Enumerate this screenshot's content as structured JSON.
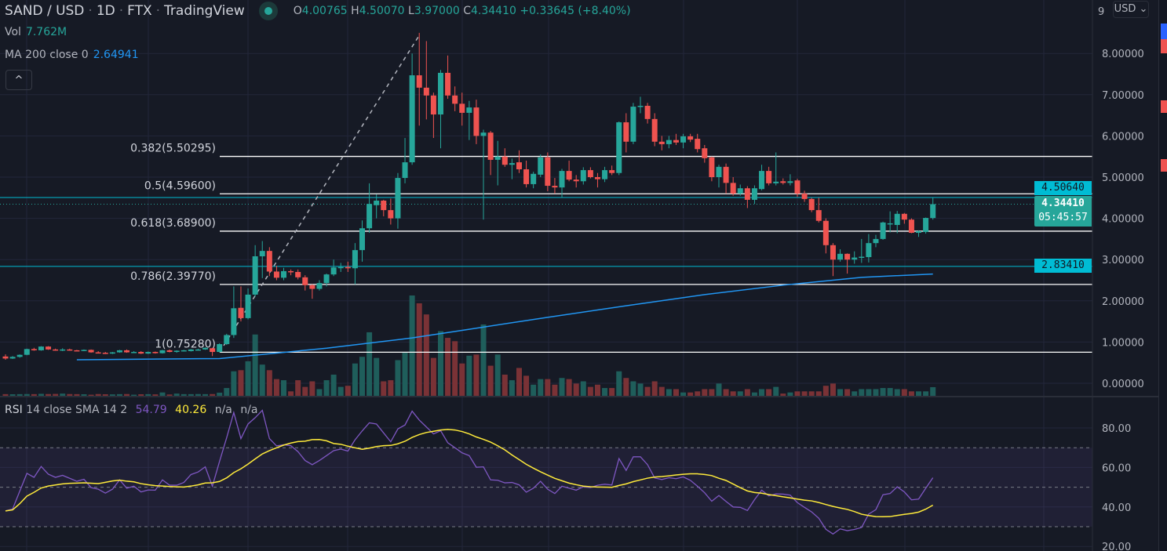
{
  "header": {
    "symbol": "SAND / USD",
    "interval": "1D",
    "exchange": "FTX",
    "source": "TradingView",
    "ohlc": {
      "o_label": "O",
      "o": "4.00765",
      "h_label": "H",
      "h": "4.50070",
      "l_label": "L",
      "l": "3.97000",
      "c_label": "C",
      "c": "4.34410",
      "change": "+0.33645 (+8.40%)"
    }
  },
  "legend": {
    "vol_label": "Vol",
    "vol_value": "7.762M",
    "ma_label": "MA 200 close 0",
    "ma_value": "2.64941",
    "collapse_icon": "chevron-up-icon",
    "collapse_glyph": "^"
  },
  "rsi_legend": {
    "name": "RSI",
    "params": "14 close SMA 14 2",
    "rsi_value": "54.79",
    "sma_value": "40.26",
    "na1": "n/a",
    "na2": "n/a"
  },
  "price_axis": {
    "currency": "USD",
    "currency_caret": "⌄",
    "top_partial": "9",
    "ticks": [
      {
        "value": 8,
        "label": "8.00000"
      },
      {
        "value": 7,
        "label": "7.00000"
      },
      {
        "value": 6,
        "label": "6.00000"
      },
      {
        "value": 5,
        "label": "5.00000"
      },
      {
        "value": 4,
        "label": "4.00000"
      },
      {
        "value": 3,
        "label": "3.00000"
      },
      {
        "value": 2,
        "label": "2.00000"
      },
      {
        "value": 1,
        "label": "1.00000"
      },
      {
        "value": 0,
        "label": "0.00000"
      }
    ]
  },
  "rsi_axis": {
    "ticks": [
      {
        "value": 80,
        "label": "80.00"
      },
      {
        "value": 60,
        "label": "60.00"
      },
      {
        "value": 40,
        "label": "40.00"
      },
      {
        "value": 20,
        "label": "20.00"
      }
    ]
  },
  "badges": {
    "line_upper": {
      "value": 4.5064,
      "label": "4.50640"
    },
    "last_price": {
      "value": 4.3441,
      "label": "4.34410",
      "countdown": "05:45:57"
    },
    "line_lower": {
      "value": 2.8341,
      "label": "2.83410"
    }
  },
  "colors": {
    "bg": "#161a25",
    "up": "#26a69a",
    "down": "#ef5350",
    "vol_up": "#1f5e5b",
    "vol_down": "#7a3236",
    "ma": "#2196f3",
    "rsi": "#7e57c2",
    "rsi_sma": "#ffeb3b",
    "hline": "#00bcd4",
    "fib": "#ffffff"
  },
  "chart_data": {
    "type": "candlestick",
    "title": "SAND / USD · 1D · FTX",
    "ylabel": "USD",
    "ylim": [
      0,
      9
    ],
    "grid": true,
    "candles_ohlcv_millions": [
      [
        0.65,
        0.7,
        0.57,
        0.6,
        1.5
      ],
      [
        0.6,
        0.66,
        0.59,
        0.64,
        1.4
      ],
      [
        0.64,
        0.7,
        0.62,
        0.69,
        1.5
      ],
      [
        0.69,
        0.84,
        0.68,
        0.83,
        1.6
      ],
      [
        0.83,
        0.86,
        0.79,
        0.8,
        1.5
      ],
      [
        0.8,
        0.9,
        0.79,
        0.89,
        1.8
      ],
      [
        0.89,
        0.9,
        0.81,
        0.82,
        1.6
      ],
      [
        0.82,
        0.84,
        0.79,
        0.8,
        1.7
      ],
      [
        0.8,
        0.85,
        0.78,
        0.82,
        2.0
      ],
      [
        0.82,
        0.84,
        0.79,
        0.8,
        1.6
      ],
      [
        0.8,
        0.81,
        0.78,
        0.79,
        1.5
      ],
      [
        0.79,
        0.82,
        0.78,
        0.81,
        1.4
      ],
      [
        0.81,
        0.82,
        0.74,
        0.75,
        1.0
      ],
      [
        0.75,
        0.78,
        0.73,
        0.74,
        1.6
      ],
      [
        0.74,
        0.76,
        0.71,
        0.72,
        1.4
      ],
      [
        0.72,
        0.76,
        0.71,
        0.75,
        1.3
      ],
      [
        0.75,
        0.81,
        0.74,
        0.8,
        1.5
      ],
      [
        0.8,
        0.82,
        0.74,
        0.75,
        1.6
      ],
      [
        0.75,
        0.78,
        0.74,
        0.76,
        1.0
      ],
      [
        0.76,
        0.78,
        0.71,
        0.72,
        1.4
      ],
      [
        0.72,
        0.77,
        0.71,
        0.76,
        1.5
      ],
      [
        0.76,
        0.77,
        0.72,
        0.73,
        1.3
      ],
      [
        0.73,
        0.81,
        0.72,
        0.8,
        3.0
      ],
      [
        0.8,
        0.82,
        0.75,
        0.76,
        1.2
      ],
      [
        0.76,
        0.8,
        0.74,
        0.79,
        2.0
      ],
      [
        0.79,
        0.81,
        0.77,
        0.8,
        1.5
      ],
      [
        0.78,
        0.83,
        0.77,
        0.82,
        1.5
      ],
      [
        0.81,
        0.84,
        0.8,
        0.82,
        1.6
      ],
      [
        0.82,
        0.87,
        0.81,
        0.86,
        1.5
      ],
      [
        0.85,
        0.86,
        0.66,
        0.76,
        1.6
      ],
      [
        0.76,
        0.97,
        0.75,
        0.95,
        2.8
      ],
      [
        0.95,
        1.2,
        0.93,
        1.17,
        7
      ],
      [
        1.17,
        2.35,
        1.1,
        1.82,
        22
      ],
      [
        1.83,
        2.35,
        1.5,
        1.58,
        23
      ],
      [
        1.58,
        2.3,
        1.55,
        2.15,
        31
      ],
      [
        2.15,
        3.35,
        2.1,
        3.08,
        55
      ],
      [
        3.08,
        3.45,
        2.55,
        3.21,
        28
      ],
      [
        3.21,
        3.3,
        2.6,
        2.71,
        23
      ],
      [
        2.71,
        2.85,
        2.5,
        2.56,
        15
      ],
      [
        2.56,
        2.8,
        2.5,
        2.72,
        14
      ],
      [
        2.72,
        2.76,
        2.62,
        2.7,
        4
      ],
      [
        2.7,
        2.76,
        2.52,
        2.57,
        14
      ],
      [
        2.57,
        2.62,
        2.25,
        2.38,
        8
      ],
      [
        2.38,
        2.4,
        2.05,
        2.29,
        13
      ],
      [
        2.29,
        2.5,
        2.25,
        2.43,
        6
      ],
      [
        2.43,
        2.66,
        2.35,
        2.64,
        14
      ],
      [
        2.64,
        3.0,
        2.6,
        2.81,
        19
      ],
      [
        2.81,
        2.92,
        2.7,
        2.82,
        8
      ],
      [
        2.82,
        2.95,
        2.7,
        2.79,
        9
      ],
      [
        2.79,
        3.4,
        2.4,
        3.23,
        29
      ],
      [
        3.23,
        3.95,
        2.95,
        3.76,
        35
      ],
      [
        3.76,
        4.85,
        3.65,
        4.35,
        57
      ],
      [
        4.32,
        4.58,
        4.0,
        4.43,
        34
      ],
      [
        4.43,
        4.45,
        4.05,
        4.2,
        13
      ],
      [
        4.2,
        4.48,
        3.85,
        4.0,
        14
      ],
      [
        4.0,
        5.1,
        3.75,
        4.98,
        32
      ],
      [
        4.98,
        5.95,
        4.85,
        5.36,
        39
      ],
      [
        5.36,
        8.0,
        5.3,
        7.47,
        90
      ],
      [
        7.47,
        8.5,
        6.25,
        7.17,
        83
      ],
      [
        7.17,
        8.3,
        6.4,
        6.98,
        73
      ],
      [
        6.98,
        7.05,
        5.95,
        6.52,
        34
      ],
      [
        6.52,
        7.6,
        5.7,
        7.53,
        58
      ],
      [
        7.53,
        7.95,
        6.9,
        6.98,
        52
      ],
      [
        6.98,
        7.2,
        6.6,
        6.78,
        49
      ],
      [
        6.78,
        7.05,
        6.25,
        6.56,
        29
      ],
      [
        6.56,
        6.85,
        5.9,
        6.69,
        36
      ],
      [
        6.69,
        6.88,
        5.8,
        6.0,
        37
      ],
      [
        6.0,
        6.15,
        3.97,
        6.08,
        64
      ],
      [
        6.08,
        6.12,
        5.05,
        5.42,
        27
      ],
      [
        5.42,
        5.88,
        4.8,
        5.5,
        37
      ],
      [
        5.5,
        5.7,
        5.25,
        5.3,
        19
      ],
      [
        5.3,
        5.45,
        4.95,
        5.34,
        14
      ],
      [
        5.36,
        5.65,
        5.1,
        5.19,
        25
      ],
      [
        5.19,
        5.4,
        4.75,
        4.83,
        18
      ],
      [
        4.83,
        5.13,
        4.73,
        5.08,
        10
      ],
      [
        5.06,
        5.55,
        5.0,
        5.48,
        15
      ],
      [
        5.48,
        5.6,
        4.66,
        4.79,
        15
      ],
      [
        4.79,
        4.98,
        4.6,
        4.75,
        10
      ],
      [
        4.75,
        5.2,
        4.5,
        5.15,
        16
      ],
      [
        5.15,
        5.4,
        4.9,
        4.94,
        15
      ],
      [
        4.94,
        5.05,
        4.75,
        4.9,
        11
      ],
      [
        4.9,
        5.24,
        4.82,
        5.17,
        13
      ],
      [
        5.17,
        5.24,
        4.97,
        5.0,
        8
      ],
      [
        5.0,
        5.1,
        4.75,
        4.95,
        10
      ],
      [
        4.95,
        5.25,
        4.88,
        5.17,
        7
      ],
      [
        5.17,
        5.28,
        5.05,
        5.1,
        7
      ],
      [
        5.1,
        6.35,
        5.05,
        6.33,
        22
      ],
      [
        6.33,
        6.55,
        5.6,
        5.86,
        16
      ],
      [
        5.86,
        6.8,
        5.8,
        6.71,
        13
      ],
      [
        6.71,
        6.95,
        6.55,
        6.73,
        11
      ],
      [
        6.73,
        6.8,
        6.3,
        6.41,
        8
      ],
      [
        6.41,
        6.55,
        5.75,
        5.86,
        13
      ],
      [
        5.86,
        6.0,
        5.65,
        5.8,
        8
      ],
      [
        5.8,
        6.0,
        5.7,
        5.9,
        6
      ],
      [
        5.9,
        6.05,
        5.78,
        5.84,
        6
      ],
      [
        5.84,
        6.05,
        5.7,
        5.99,
        3
      ],
      [
        5.99,
        6.05,
        5.85,
        5.91,
        3
      ],
      [
        5.93,
        6.05,
        5.6,
        5.68,
        4
      ],
      [
        5.7,
        5.78,
        5.35,
        5.46,
        6
      ],
      [
        5.48,
        5.5,
        4.9,
        5.0,
        6
      ],
      [
        5.0,
        5.3,
        4.75,
        5.25,
        11
      ],
      [
        5.25,
        5.33,
        4.6,
        4.86,
        6
      ],
      [
        4.86,
        5.0,
        4.55,
        4.6,
        4
      ],
      [
        4.6,
        4.82,
        4.55,
        4.73,
        4
      ],
      [
        4.73,
        4.78,
        4.25,
        4.45,
        6
      ],
      [
        4.45,
        4.8,
        4.35,
        4.73,
        3
      ],
      [
        4.71,
        5.3,
        4.68,
        5.15,
        6
      ],
      [
        5.15,
        5.25,
        4.8,
        4.85,
        6
      ],
      [
        4.85,
        5.6,
        4.8,
        4.89,
        8
      ],
      [
        4.9,
        4.97,
        4.82,
        4.86,
        2
      ],
      [
        4.86,
        5.07,
        4.8,
        4.9,
        3
      ],
      [
        4.92,
        4.96,
        4.52,
        4.6,
        4
      ],
      [
        4.6,
        4.67,
        4.4,
        4.47,
        4
      ],
      [
        4.47,
        4.5,
        4.15,
        4.2,
        4
      ],
      [
        4.2,
        4.5,
        3.9,
        3.94,
        4
      ],
      [
        3.94,
        4.0,
        3.15,
        3.35,
        9
      ],
      [
        3.35,
        3.4,
        2.6,
        3.0,
        11
      ],
      [
        3.0,
        3.25,
        2.95,
        3.14,
        6
      ],
      [
        3.14,
        3.15,
        2.66,
        3.0,
        6
      ],
      [
        3.0,
        3.2,
        2.9,
        3.05,
        4
      ],
      [
        3.05,
        3.5,
        2.92,
        3.07,
        6
      ],
      [
        3.06,
        3.62,
        2.93,
        3.4,
        6
      ],
      [
        3.4,
        3.6,
        3.3,
        3.5,
        6
      ],
      [
        3.5,
        3.92,
        3.48,
        3.9,
        7
      ],
      [
        3.88,
        4.17,
        3.66,
        3.88,
        7
      ],
      [
        3.84,
        4.18,
        3.64,
        4.11,
        6
      ],
      [
        4.11,
        4.13,
        3.87,
        3.97,
        6
      ],
      [
        3.97,
        4.0,
        3.64,
        3.65,
        4
      ],
      [
        3.65,
        3.71,
        3.55,
        3.69,
        4
      ],
      [
        3.67,
        4.02,
        3.63,
        4.01,
        4
      ],
      [
        4.00765,
        4.5007,
        3.97,
        4.3441,
        7.762
      ]
    ],
    "ma200_points": [
      [
        10,
        0.57
      ],
      [
        30,
        0.6
      ],
      [
        45,
        0.85
      ],
      [
        57,
        1.1
      ],
      [
        65,
        1.31
      ],
      [
        76,
        1.6
      ],
      [
        87,
        1.88
      ],
      [
        98,
        2.15
      ],
      [
        109,
        2.38
      ],
      [
        120,
        2.57
      ],
      [
        130,
        2.65
      ]
    ],
    "fib_levels": [
      {
        "level": 0.382,
        "value": 5.50295,
        "label": "0.382(5.50295)"
      },
      {
        "level": 0.5,
        "value": 4.596,
        "label": "0.5(4.59600)"
      },
      {
        "level": 0.618,
        "value": 3.689,
        "label": "0.618(3.68900)"
      },
      {
        "level": 0.786,
        "value": 2.3977,
        "label": "0.786(2.39770)"
      },
      {
        "level": 1,
        "value": 0.7528,
        "label": "1(0.75280)"
      }
    ],
    "fib_trend": {
      "from": [
        30,
        0.7528
      ],
      "to": [
        58,
        8.4394
      ]
    },
    "rsi": {
      "ylim": [
        20,
        90
      ],
      "upper_band": 70,
      "middle": 50,
      "lower_band": 30,
      "values": [
        38,
        39,
        48,
        57,
        55,
        60.5,
        56.6,
        55,
        56,
        54.5,
        53,
        54,
        49.8,
        49,
        47,
        49,
        53.7,
        49.5,
        50.5,
        47.6,
        48.6,
        48.5,
        53.7,
        51,
        51,
        52.4,
        56.4,
        57.7,
        60.3,
        50.5,
        63,
        75,
        87.8,
        74.6,
        82,
        85.2,
        88.9,
        74.6,
        70.9,
        71.5,
        71,
        68,
        63.5,
        61.4,
        63.5,
        66,
        68.5,
        69.3,
        68.3,
        74,
        78.5,
        82.6,
        82,
        77.5,
        73,
        79.5,
        81.5,
        88.5,
        84,
        80.5,
        77,
        78.6,
        72.5,
        70,
        67.4,
        66,
        60.1,
        60.3,
        53.7,
        53.5,
        52.2,
        52.4,
        51.2,
        47.5,
        49.5,
        53,
        49,
        46.8,
        50.5,
        49.5,
        48.5,
        50.2,
        49.8,
        51,
        51.5,
        51.1,
        64.5,
        58.5,
        65.4,
        65.4,
        61.4,
        54.7,
        53.9,
        54.8,
        54.3,
        55.2,
        53.5,
        50.5,
        47.2,
        42.9,
        45.8,
        42.8,
        40,
        39.8,
        38.2,
        43.7,
        48.5,
        45.6,
        46.6,
        46.5,
        46,
        42.2,
        39.8,
        37.5,
        34.3,
        28.7,
        26.3,
        28.9,
        28,
        28.6,
        29.6,
        36.4,
        38.6,
        46.2,
        46.8,
        50.2,
        47.6,
        43.6,
        44,
        49.5,
        54.79
      ]
    }
  }
}
